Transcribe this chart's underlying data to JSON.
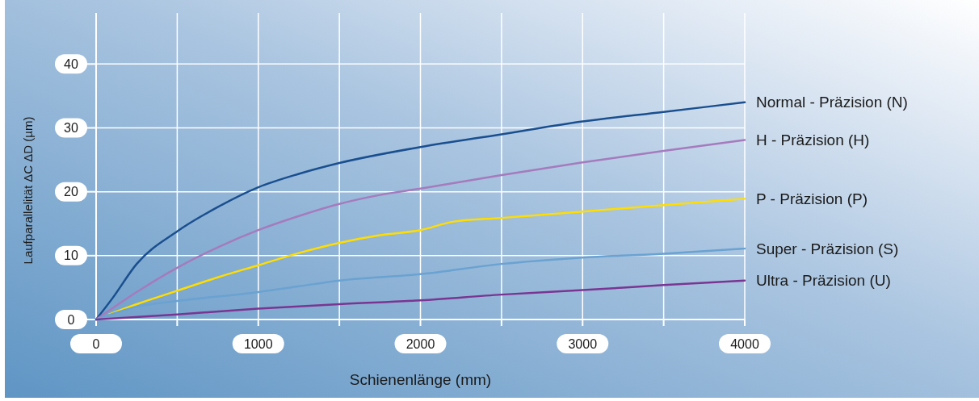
{
  "chart_data": {
    "type": "line",
    "xlabel": "Schienenlänge (mm)",
    "ylabel": "Laufparallelität ΔC ΔD (µm)",
    "xlim": [
      0,
      4000
    ],
    "ylim": [
      0,
      48
    ],
    "xticks": [
      0,
      {
        "value": 500,
        "label": null
      },
      1000,
      {
        "value": 1500,
        "label": null
      },
      2000,
      {
        "value": 2500,
        "label": null
      },
      3000,
      {
        "value": 3500,
        "label": null
      },
      4000
    ],
    "yticks": [
      0,
      10,
      20,
      30,
      40
    ],
    "grid": true,
    "line_style": "solid",
    "series": [
      {
        "name": "Normal - Präzision (N)",
        "color": "#1a4f8f",
        "x": [
          0,
          100,
          250,
          500,
          750,
          1000,
          1250,
          1500,
          2000,
          2500,
          3000,
          3500,
          4000
        ],
        "values": [
          0,
          3.3,
          8.7,
          13.8,
          17.6,
          20.7,
          22.8,
          24.5,
          27.0,
          29.0,
          31.0,
          32.5,
          34.0
        ]
      },
      {
        "name": "H - Präzision (H)",
        "color": "#a57bbd",
        "x": [
          0,
          250,
          500,
          750,
          1000,
          1250,
          1500,
          1750,
          2000,
          2500,
          3000,
          3500,
          4000
        ],
        "values": [
          0,
          4.3,
          8.1,
          11.3,
          14.0,
          16.2,
          18.1,
          19.5,
          20.5,
          22.6,
          24.6,
          26.4,
          28.1
        ]
      },
      {
        "name": "P - Präzision (P)",
        "color": "#ffdd00",
        "x": [
          80,
          250,
          500,
          750,
          1000,
          1250,
          1500,
          1750,
          2000,
          2200,
          2500,
          3000,
          3500,
          4000
        ],
        "values": [
          0.8,
          2.4,
          4.5,
          6.6,
          8.5,
          10.4,
          12.0,
          13.2,
          14.0,
          15.3,
          15.9,
          16.9,
          17.9,
          18.9
        ]
      },
      {
        "name": "Super - Präzision (S)",
        "color": "#6aa2d1",
        "x": [
          0,
          250,
          500,
          1000,
          1250,
          1500,
          2000,
          2500,
          3000,
          3500,
          4000
        ],
        "values": [
          0,
          2.0,
          2.9,
          4.3,
          5.2,
          6.1,
          7.1,
          8.7,
          9.7,
          10.3,
          11.1
        ]
      },
      {
        "name": "Ultra - Präzision (U)",
        "color": "#7a3592",
        "x": [
          0,
          500,
          1000,
          1500,
          2000,
          2500,
          3000,
          3500,
          4000
        ],
        "values": [
          0,
          0.8,
          1.7,
          2.4,
          3.0,
          3.9,
          4.6,
          5.4,
          6.1
        ]
      }
    ]
  }
}
